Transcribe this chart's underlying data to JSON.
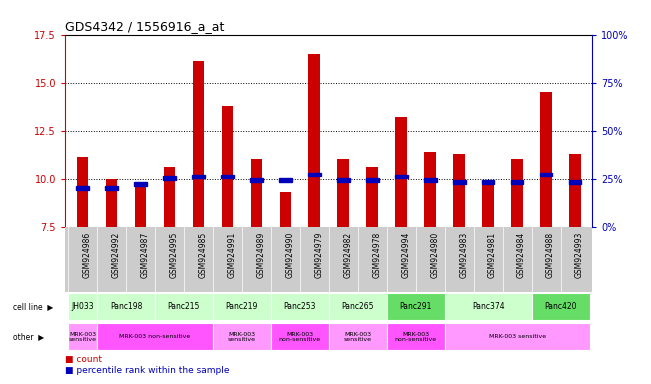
{
  "title": "GDS4342 / 1556916_a_at",
  "samples": [
    "GSM924986",
    "GSM924992",
    "GSM924987",
    "GSM924995",
    "GSM924985",
    "GSM924991",
    "GSM924989",
    "GSM924990",
    "GSM924979",
    "GSM924982",
    "GSM924978",
    "GSM924994",
    "GSM924980",
    "GSM924983",
    "GSM924981",
    "GSM924984",
    "GSM924988",
    "GSM924993"
  ],
  "counts": [
    11.1,
    10.0,
    9.7,
    10.6,
    16.1,
    13.8,
    11.0,
    9.3,
    16.5,
    11.0,
    10.6,
    13.2,
    11.4,
    11.3,
    9.7,
    11.0,
    14.5,
    11.3
  ],
  "percentiles": [
    20,
    20,
    22,
    25,
    26,
    26,
    24,
    24,
    27,
    24,
    24,
    26,
    24,
    23,
    23,
    23,
    27,
    23
  ],
  "ymin": 7.5,
  "ymax": 17.5,
  "yticks_left": [
    7.5,
    10.0,
    12.5,
    15.0,
    17.5
  ],
  "yticks_right": [
    0,
    25,
    50,
    75,
    100
  ],
  "gridlines": [
    10.0,
    12.5,
    15.0
  ],
  "bar_color": "#cc0000",
  "percentile_color": "#0000bb",
  "cell_lines": [
    {
      "name": "JH033",
      "start": 0,
      "end": 1,
      "color": "#ccffcc"
    },
    {
      "name": "Panc198",
      "start": 1,
      "end": 3,
      "color": "#ccffcc"
    },
    {
      "name": "Panc215",
      "start": 3,
      "end": 5,
      "color": "#ccffcc"
    },
    {
      "name": "Panc219",
      "start": 5,
      "end": 7,
      "color": "#ccffcc"
    },
    {
      "name": "Panc253",
      "start": 7,
      "end": 9,
      "color": "#ccffcc"
    },
    {
      "name": "Panc265",
      "start": 9,
      "end": 11,
      "color": "#ccffcc"
    },
    {
      "name": "Panc291",
      "start": 11,
      "end": 13,
      "color": "#66dd66"
    },
    {
      "name": "Panc374",
      "start": 13,
      "end": 16,
      "color": "#ccffcc"
    },
    {
      "name": "Panc420",
      "start": 16,
      "end": 18,
      "color": "#66dd66"
    }
  ],
  "other_labels": [
    {
      "text": "MRK-003\nsensitive",
      "start": 0,
      "end": 1,
      "color": "#ff99ff"
    },
    {
      "text": "MRK-003 non-sensitive",
      "start": 1,
      "end": 5,
      "color": "#ff55ff"
    },
    {
      "text": "MRK-003\nsensitive",
      "start": 5,
      "end": 7,
      "color": "#ff99ff"
    },
    {
      "text": "MRK-003\nnon-sensitive",
      "start": 7,
      "end": 9,
      "color": "#ff55ff"
    },
    {
      "text": "MRK-003\nsensitive",
      "start": 9,
      "end": 11,
      "color": "#ff99ff"
    },
    {
      "text": "MRK-003\nnon-sensitive",
      "start": 11,
      "end": 13,
      "color": "#ff55ff"
    },
    {
      "text": "MRK-003 sensitive",
      "start": 13,
      "end": 18,
      "color": "#ff99ff"
    }
  ],
  "label_row_bg": "#cccccc",
  "bar_width": 0.4
}
